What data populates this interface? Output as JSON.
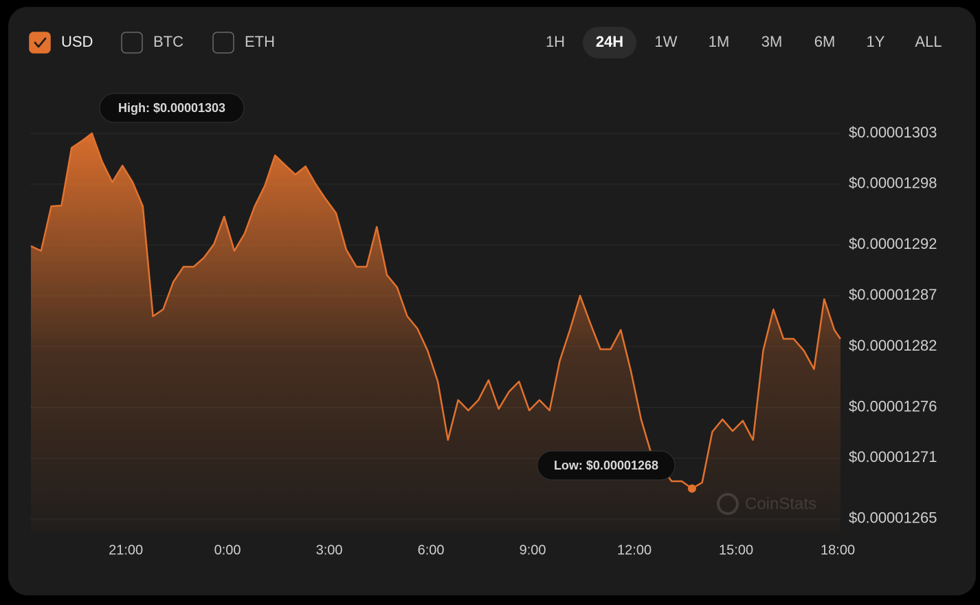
{
  "controls": {
    "currencies": [
      "USD",
      "BTC",
      "ETH"
    ],
    "checked": [
      true,
      false,
      false
    ],
    "ranges": [
      "1H",
      "24H",
      "1W",
      "1M",
      "3M",
      "6M",
      "1Y",
      "ALL"
    ],
    "selected": [
      false,
      true,
      false,
      false,
      false,
      false,
      false,
      false
    ]
  },
  "chart_data": {
    "type": "area",
    "color": "#e2722e",
    "annotations": [
      "High: $0.00001303",
      "Low: $0.00001268"
    ],
    "watermark": "CoinStats",
    "x": [
      18.2,
      18.5,
      18.8,
      19.1,
      19.4,
      19.7,
      20.0,
      20.3,
      20.6,
      20.9,
      21.2,
      21.5,
      21.8,
      22.1,
      22.4,
      22.7,
      23.0,
      23.3,
      23.6,
      23.9,
      24.2,
      24.5,
      24.8,
      25.1,
      25.4,
      25.7,
      26.0,
      26.3,
      26.6,
      26.9,
      27.2,
      27.5,
      27.8,
      28.1,
      28.4,
      28.7,
      29.0,
      29.3,
      29.6,
      29.9,
      30.2,
      30.5,
      30.8,
      31.1,
      31.4,
      31.7,
      32.0,
      32.3,
      32.6,
      32.9,
      33.2,
      33.5,
      33.8,
      34.1,
      34.4,
      34.7,
      35.0,
      35.3,
      35.6,
      35.9,
      36.2,
      36.5,
      36.8,
      37.1,
      37.4,
      37.7,
      38.0,
      38.3,
      38.6,
      38.9,
      39.2,
      39.5,
      39.8,
      40.1,
      40.4,
      40.7,
      41.0,
      41.3,
      41.6,
      41.9,
      42.08
    ],
    "values": [
      1.29189e-05,
      1.29142e-05,
      1.29582e-05,
      1.29589e-05,
      1.30158e-05,
      1.30225e-05,
      1.303e-05,
      1.30022e-05,
      1.29819e-05,
      1.29982e-05,
      1.29819e-05,
      1.29582e-05,
      1.28498e-05,
      1.28566e-05,
      1.28837e-05,
      1.28986e-05,
      1.28986e-05,
      1.29074e-05,
      1.29209e-05,
      1.2948e-05,
      1.29142e-05,
      1.29311e-05,
      1.29582e-05,
      1.29785e-05,
      1.30083e-05,
      1.29988e-05,
      1.29894e-05,
      1.29975e-05,
      1.29799e-05,
      1.2965e-05,
      1.29514e-05,
      1.29155e-05,
      1.28986e-05,
      1.28986e-05,
      1.29379e-05,
      1.28905e-05,
      1.28783e-05,
      1.28498e-05,
      1.28376e-05,
      1.28159e-05,
      1.27855e-05,
      1.27279e-05,
      1.27672e-05,
      1.2757e-05,
      1.27672e-05,
      1.27868e-05,
      1.27584e-05,
      1.27753e-05,
      1.27855e-05,
      1.2757e-05,
      1.27672e-05,
      1.2757e-05,
      1.28058e-05,
      1.28363e-05,
      1.28701e-05,
      1.2843e-05,
      1.28173e-05,
      1.28173e-05,
      1.28363e-05,
      1.27956e-05,
      1.27482e-05,
      1.27143e-05,
      1.27008e-05,
      1.26872e-05,
      1.26872e-05,
      1.268e-05,
      1.26859e-05,
      1.2736e-05,
      1.27482e-05,
      1.27367e-05,
      1.27468e-05,
      1.27279e-05,
      1.28159e-05,
      1.28566e-05,
      1.28275e-05,
      1.28275e-05,
      1.28159e-05,
      1.27977e-05,
      1.28667e-05,
      1.28363e-05,
      1.28275e-05
    ],
    "xlim": [
      18.18,
      42.08
    ],
    "xticks": [
      {
        "value": 21,
        "label": "21:00"
      },
      {
        "value": 24,
        "label": "0:00"
      },
      {
        "value": 27,
        "label": "3:00"
      },
      {
        "value": 30,
        "label": "6:00"
      },
      {
        "value": 33,
        "label": "9:00"
      },
      {
        "value": 36,
        "label": "12:00"
      },
      {
        "value": 39,
        "label": "15:00"
      },
      {
        "value": 42,
        "label": "18:00"
      }
    ],
    "ylim": [
      1.26364e-05,
      1.303e-05
    ],
    "yticks": [
      {
        "value": 1.303e-05,
        "label": "$0.00001303"
      },
      {
        "value": 1.298e-05,
        "label": "$0.00001298"
      },
      {
        "value": 1.292e-05,
        "label": "$0.00001292"
      },
      {
        "value": 1.287e-05,
        "label": "$0.00001287"
      },
      {
        "value": 1.282e-05,
        "label": "$0.00001282"
      },
      {
        "value": 1.276e-05,
        "label": "$0.00001276"
      },
      {
        "value": 1.271e-05,
        "label": "$0.00001271"
      },
      {
        "value": 1.265e-05,
        "label": "$0.00001265"
      }
    ],
    "grid": true
  }
}
